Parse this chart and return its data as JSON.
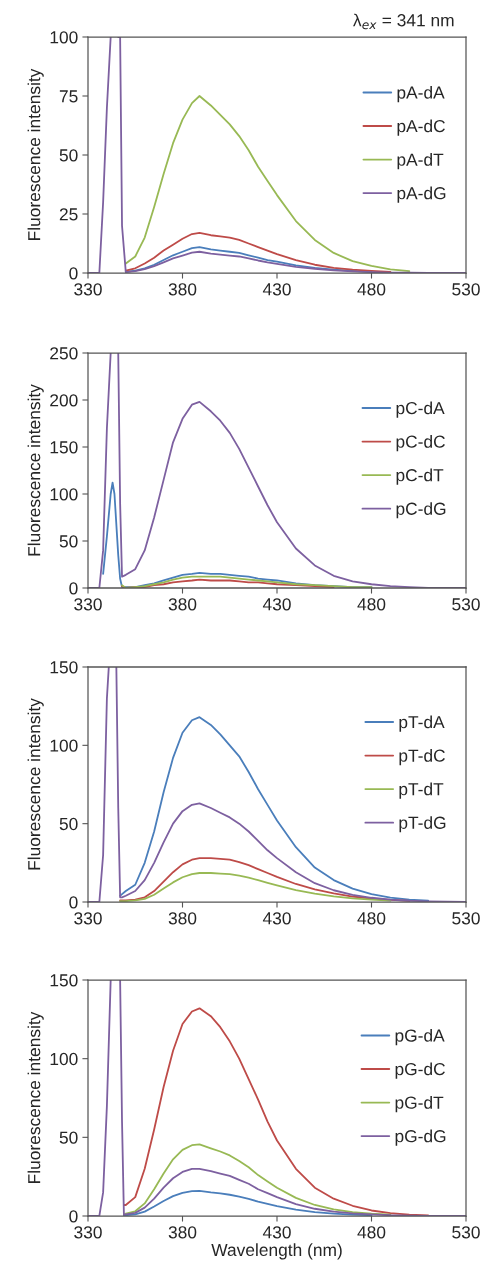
{
  "chart_data": [
    {
      "type": "line",
      "ylabel": "Fluorescence intensity",
      "annotations": [
        "λ$_{ex}$ = 341 nm"
      ],
      "legend": "right",
      "xlim": [
        330,
        530
      ],
      "xticks": [
        330,
        380,
        430,
        480,
        530
      ],
      "ylim": [
        0,
        100
      ],
      "yticks": [
        0,
        25,
        50,
        75,
        100
      ],
      "x": [
        330,
        336,
        338,
        340,
        342,
        343,
        344,
        346,
        347,
        348,
        350,
        355,
        360,
        365,
        370,
        375,
        380,
        385,
        389,
        395,
        400,
        405,
        410,
        415,
        420,
        425,
        430,
        440,
        450,
        460,
        470,
        480,
        490,
        500,
        510,
        520,
        530
      ],
      "series": [
        {
          "name": "pA-dA",
          "color": "#4a7ebb",
          "values": [
            null,
            null,
            null,
            null,
            null,
            null,
            null,
            null,
            null,
            null,
            0.5,
            1,
            2,
            3.5,
            5.5,
            7.5,
            9,
            10.5,
            11,
            10,
            9.5,
            9,
            8.5,
            7.5,
            6.5,
            5.5,
            4.8,
            3.2,
            2.2,
            1.4,
            0.9,
            0.5,
            null,
            null,
            null,
            null,
            null
          ]
        },
        {
          "name": "pA-dC",
          "color": "#be4b48",
          "values": [
            null,
            null,
            null,
            null,
            null,
            null,
            null,
            null,
            null,
            null,
            1,
            2,
            4,
            6.5,
            9.5,
            12,
            14.5,
            16.5,
            17,
            16,
            15.5,
            15,
            14,
            12.5,
            11,
            9.5,
            8,
            5.5,
            3.5,
            2.2,
            1.4,
            0.9,
            0.5,
            null,
            null,
            null,
            null
          ]
        },
        {
          "name": "pA-dT",
          "color": "#98b954",
          "values": [
            null,
            null,
            null,
            null,
            null,
            null,
            null,
            null,
            null,
            null,
            4,
            7,
            15,
            28,
            42,
            55,
            65,
            72,
            75,
            71,
            67,
            63,
            58,
            52,
            45,
            39,
            33,
            22,
            14,
            8.5,
            5,
            3,
            1.5,
            0.8,
            null,
            null,
            null
          ]
        },
        {
          "name": "pA-dG",
          "color": "#7d60a0",
          "values": [
            0,
            0,
            30,
            70,
            100,
            null,
            null,
            100,
            100,
            20,
            0.4,
            0.8,
            1.6,
            2.9,
            4.5,
            6.2,
            7.4,
            8.6,
            9,
            8.2,
            7.8,
            7.4,
            7,
            6.2,
            5.3,
            4.5,
            3.9,
            2.6,
            1.8,
            1.1,
            0.7,
            0.4,
            0.2,
            0.1,
            0,
            0,
            0
          ]
        }
      ]
    },
    {
      "type": "line",
      "ylabel": "Fluorescence intensity",
      "legend": "right",
      "xlim": [
        330,
        530
      ],
      "xticks": [
        330,
        380,
        430,
        480,
        530
      ],
      "ylim": [
        0,
        250
      ],
      "yticks": [
        0,
        50,
        100,
        150,
        200,
        250
      ],
      "x": [
        330,
        336,
        338,
        340,
        342,
        343,
        344,
        346,
        347,
        348,
        350,
        355,
        360,
        365,
        370,
        375,
        380,
        385,
        389,
        395,
        400,
        405,
        410,
        415,
        420,
        425,
        430,
        440,
        450,
        460,
        470,
        480,
        490,
        500,
        510,
        520,
        530
      ],
      "series": [
        {
          "name": "pC-dA",
          "color": "#4a7ebb",
          "values": [
            null,
            null,
            15,
            55,
            100,
            112,
            100,
            35,
            10,
            1,
            1,
            1,
            3,
            5,
            8,
            11,
            14,
            15,
            16,
            15,
            15,
            14,
            13,
            12,
            10,
            9,
            8,
            5,
            3,
            2,
            1,
            1,
            null,
            null,
            null,
            null,
            null
          ]
        },
        {
          "name": "pC-dC",
          "color": "#be4b48",
          "values": [
            null,
            null,
            null,
            null,
            null,
            null,
            null,
            null,
            null,
            2,
            0,
            1,
            1,
            3,
            4,
            6,
            7,
            8,
            9,
            8,
            8,
            8,
            7,
            6,
            6,
            5,
            4,
            3,
            2,
            1,
            null,
            null,
            null,
            null,
            null,
            null,
            null
          ]
        },
        {
          "name": "pC-dT",
          "color": "#98b954",
          "values": [
            null,
            null,
            null,
            null,
            null,
            null,
            null,
            null,
            null,
            3,
            0,
            1,
            2,
            4,
            6,
            9,
            11,
            12,
            12,
            12,
            12,
            11,
            10,
            9,
            8,
            7,
            6,
            4,
            3,
            2,
            1,
            1,
            null,
            null,
            null,
            null,
            null
          ]
        },
        {
          "name": "pC-dG",
          "color": "#7d60a0",
          "values": [
            0,
            0,
            40,
            170,
            250,
            null,
            null,
            250,
            90,
            12,
            14,
            20,
            40,
            75,
            115,
            155,
            180,
            195,
            198,
            188,
            178,
            165,
            148,
            128,
            108,
            88,
            70,
            42,
            24,
            13,
            7,
            4,
            2,
            1,
            0,
            0,
            0
          ]
        }
      ]
    },
    {
      "type": "line",
      "ylabel": "Fluorescence intensity",
      "legend": "right",
      "xlim": [
        330,
        530
      ],
      "xticks": [
        330,
        380,
        430,
        480,
        530
      ],
      "ylim": [
        0,
        150
      ],
      "yticks": [
        0,
        50,
        100,
        150
      ],
      "x": [
        330,
        336,
        338,
        340,
        341,
        343,
        345,
        346,
        347,
        348,
        350,
        355,
        360,
        365,
        370,
        375,
        380,
        385,
        389,
        395,
        400,
        405,
        410,
        415,
        420,
        425,
        430,
        440,
        450,
        460,
        470,
        480,
        490,
        500,
        510,
        520,
        530
      ],
      "series": [
        {
          "name": "pT-dA",
          "color": "#4a7ebb",
          "values": [
            null,
            null,
            null,
            null,
            null,
            null,
            null,
            null,
            4,
            5,
            7,
            11,
            25,
            45,
            70,
            92,
            108,
            116,
            118,
            113,
            107,
            100,
            93,
            83,
            72,
            62,
            52,
            35,
            22,
            14,
            8.5,
            5,
            2.8,
            1.5,
            0.8,
            null,
            null
          ]
        },
        {
          "name": "pT-dC",
          "color": "#be4b48",
          "values": [
            null,
            null,
            null,
            null,
            null,
            null,
            null,
            null,
            1,
            1,
            1,
            1.5,
            3,
            7,
            13,
            19,
            24,
            27,
            28,
            28,
            27.5,
            27,
            25.5,
            23.5,
            21,
            18.5,
            16,
            11.5,
            8,
            5.5,
            3.5,
            2.2,
            1.3,
            0.7,
            null,
            null,
            null
          ]
        },
        {
          "name": "pT-dT",
          "color": "#98b954",
          "values": [
            null,
            null,
            null,
            null,
            null,
            null,
            null,
            null,
            0.5,
            0.5,
            0.6,
            1,
            2,
            4.6,
            8.6,
            12.5,
            15.8,
            17.8,
            18.5,
            18.5,
            18.1,
            17.8,
            16.8,
            15.5,
            13.9,
            12.2,
            10.6,
            7.6,
            5.3,
            3.6,
            2.3,
            1.5,
            0.9,
            null,
            null,
            null,
            null
          ]
        },
        {
          "name": "pT-dG",
          "color": "#7d60a0",
          "values": [
            0,
            0,
            30,
            130,
            150,
            null,
            150,
            60,
            3,
            3,
            4,
            7,
            14,
            25,
            38,
            50,
            58,
            62,
            63,
            60,
            57,
            54,
            50,
            45,
            39,
            33,
            28,
            19,
            12,
            7.5,
            4.5,
            2.7,
            1.5,
            0.8,
            0.4,
            0.2,
            0
          ]
        }
      ]
    },
    {
      "type": "line",
      "ylabel": "Fluorescence intensity",
      "xlabel": "Wavelength (nm)",
      "legend": "right",
      "xlim": [
        330,
        530
      ],
      "xticks": [
        330,
        380,
        430,
        480,
        530
      ],
      "ylim": [
        0,
        150
      ],
      "yticks": [
        0,
        50,
        100,
        150
      ],
      "x": [
        330,
        336,
        338,
        340,
        342,
        344,
        346,
        347,
        348,
        349,
        350,
        355,
        360,
        365,
        370,
        375,
        380,
        385,
        389,
        395,
        400,
        405,
        410,
        415,
        420,
        425,
        430,
        440,
        450,
        460,
        470,
        480,
        490,
        500,
        510,
        520,
        530
      ],
      "series": [
        {
          "name": "pG-dA",
          "color": "#4a7ebb",
          "values": [
            null,
            null,
            null,
            null,
            null,
            null,
            null,
            null,
            null,
            0.4,
            0.5,
            1,
            2.8,
            6,
            9.5,
            12.6,
            14.7,
            15.8,
            16,
            15,
            14.4,
            13.5,
            12.3,
            10.9,
            9.1,
            7.7,
            6.3,
            4,
            2.5,
            1.5,
            0.9,
            0.5,
            null,
            null,
            null,
            null,
            null
          ]
        },
        {
          "name": "pG-dC",
          "color": "#be4b48",
          "values": [
            null,
            null,
            null,
            null,
            null,
            null,
            null,
            null,
            null,
            7,
            7,
            12,
            30,
            55,
            82,
            105,
            122,
            130,
            132,
            127,
            120,
            111,
            100,
            87,
            74,
            60,
            48,
            30,
            18,
            11,
            6.5,
            3.5,
            1.8,
            0.9,
            0.4,
            null,
            null
          ]
        },
        {
          "name": "pG-dT",
          "color": "#98b954",
          "values": [
            null,
            null,
            null,
            null,
            null,
            null,
            null,
            null,
            null,
            1,
            1.5,
            3,
            8,
            17,
            27,
            36,
            42,
            45,
            45.5,
            43,
            41,
            38.5,
            35,
            31,
            26,
            22,
            18,
            11.5,
            7,
            4.2,
            2.5,
            1.5,
            0.8,
            null,
            null,
            null,
            null
          ]
        },
        {
          "name": "pG-dG",
          "color": "#7d60a0",
          "values": [
            0,
            0,
            15,
            70,
            150,
            null,
            null,
            150,
            60,
            0.7,
            1,
            2,
            5.3,
            11,
            18,
            24,
            28,
            30,
            30,
            28.5,
            27,
            25.5,
            23,
            20.5,
            17,
            14.5,
            12,
            7.6,
            4.6,
            2.8,
            1.7,
            1,
            0.5,
            0.3,
            0.1,
            0,
            0
          ]
        }
      ]
    }
  ]
}
